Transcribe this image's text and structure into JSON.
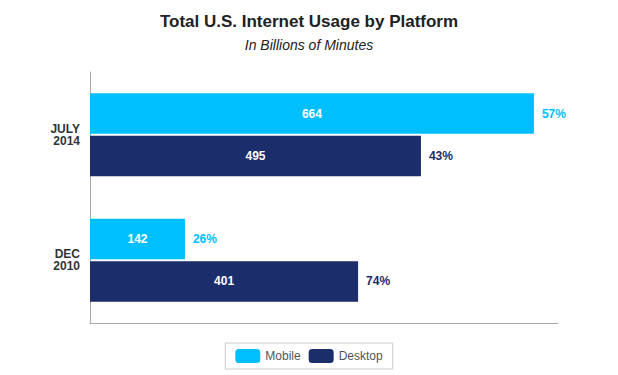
{
  "chart_data": {
    "type": "bar",
    "orientation": "horizontal",
    "title": "Total U.S. Internet Usage by Platform",
    "subtitle": "In Billions of Minutes",
    "categories": [
      "JULY\n2014",
      "DEC\n2010"
    ],
    "series": [
      {
        "name": "Mobile",
        "color": "#00BFFF",
        "values": [
          664,
          142
        ],
        "pct_labels": [
          "57%",
          "26%"
        ]
      },
      {
        "name": "Desktop",
        "color": "#1B2D6B",
        "values": [
          495,
          401
        ],
        "pct_labels": [
          "43%",
          "74%"
        ]
      }
    ],
    "xlim": [
      0,
      700
    ],
    "xticks": [],
    "grid": false,
    "legend": "bottom",
    "data_labels": true,
    "tick_labels": "y"
  }
}
